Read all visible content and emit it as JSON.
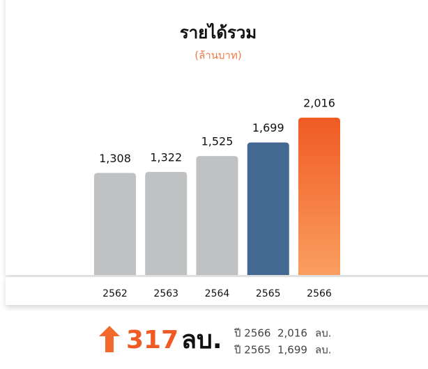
{
  "chart_data": {
    "type": "bar",
    "title": "รายได้รวม",
    "subtitle": "(ล้านบาท)",
    "categories": [
      "2562",
      "2563",
      "2564",
      "2565",
      "2566"
    ],
    "values": [
      1308,
      1322,
      1525,
      1699,
      2016
    ],
    "value_labels": [
      "1,308",
      "1,322",
      "1,525",
      "1,699",
      "2,016"
    ],
    "colors": [
      "#c0c1c3",
      "#c0c1c3",
      "#c0c1c3",
      "#436891",
      [
        "#f05a24",
        "#fa9f60"
      ]
    ],
    "ylim": [
      0,
      2400
    ]
  },
  "summary": {
    "change": 317,
    "unit": "ลบ.",
    "rows": [
      [
        "ปี 2566",
        "2,016",
        "ลบ."
      ],
      [
        "ปี 2565",
        "1,699",
        "ลบ."
      ]
    ]
  }
}
